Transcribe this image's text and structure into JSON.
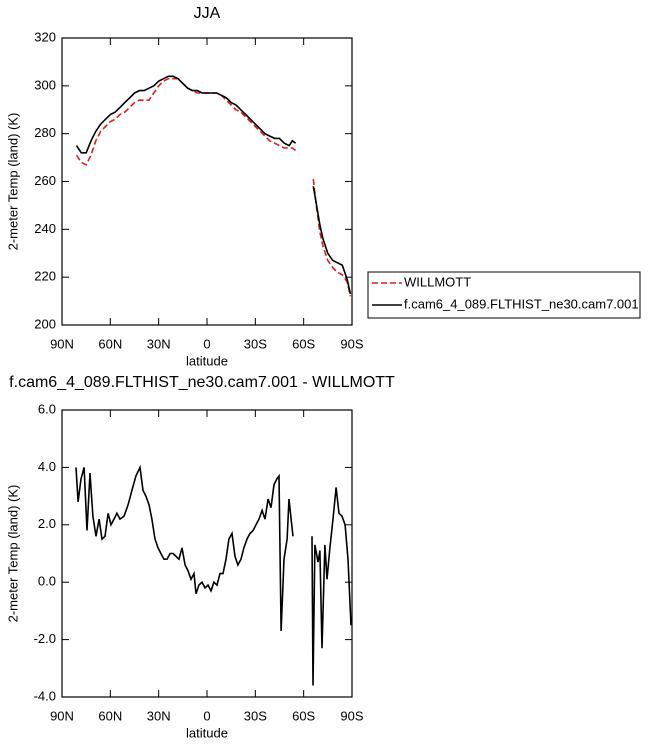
{
  "chart_data": [
    {
      "type": "line",
      "title": "JJA",
      "ylabel": "2-meter Temp (land) (K)",
      "xlabel": "latitude",
      "xlim": [
        90,
        -90
      ],
      "xticks": [
        {
          "value": 90,
          "label": "90N"
        },
        {
          "value": 60,
          "label": "60N"
        },
        {
          "value": 30,
          "label": "30N"
        },
        0,
        {
          "value": -30,
          "label": "30S"
        },
        {
          "value": -60,
          "label": "60S"
        },
        {
          "value": -90,
          "label": "90S"
        }
      ],
      "ylim": [
        200,
        320
      ],
      "yticks": [
        200,
        220,
        240,
        260,
        280,
        300,
        320
      ],
      "x": [
        81,
        78,
        75,
        72,
        69,
        66,
        63,
        60,
        57,
        54,
        51,
        48,
        45,
        42,
        39,
        36,
        33,
        30,
        27,
        24,
        21,
        18,
        15,
        12,
        9,
        6,
        3,
        0,
        -3,
        -6,
        -9,
        -12,
        -15,
        -18,
        -21,
        -24,
        -27,
        -30,
        -33,
        -36,
        -39,
        -42,
        -45,
        -48,
        -51,
        -53,
        -55,
        -60,
        -66,
        -68,
        -70,
        -72,
        -75,
        -78,
        -81,
        -84,
        -87,
        -89
      ],
      "series": [
        {
          "name": "WILLMOTT",
          "color": "#e41a1c",
          "linestyle": "dashed",
          "values": [
            271,
            268,
            267,
            271,
            277,
            281,
            283,
            285,
            286,
            288,
            289,
            291,
            293,
            294,
            294,
            294,
            297,
            300,
            302,
            303,
            303,
            303,
            301,
            299,
            298,
            297,
            297,
            297,
            297,
            297,
            296,
            294,
            292,
            290,
            289,
            287,
            285,
            283,
            281,
            279,
            277,
            276,
            275,
            274,
            274,
            274,
            273,
            null,
            261,
            249,
            239,
            233,
            227,
            224,
            222,
            221,
            218,
            212
          ]
        },
        {
          "name": "f.cam6_4_089.FLTHIST_ne30.cam7.001",
          "color": "#000000",
          "linestyle": "solid",
          "values": [
            275,
            272,
            272,
            277,
            281,
            284,
            286,
            288,
            289,
            291,
            293,
            295,
            297,
            298,
            298,
            299,
            300,
            302,
            303,
            304,
            304,
            303,
            301,
            299,
            298,
            298,
            297,
            297,
            297,
            297,
            296,
            295,
            293,
            292,
            290,
            288,
            286,
            284,
            282,
            280,
            279,
            278,
            278,
            276,
            275,
            277,
            276,
            null,
            258,
            250,
            242,
            236,
            230,
            227,
            226,
            225,
            219,
            213
          ]
        }
      ]
    },
    {
      "type": "line",
      "title": "f.cam6_4_089.FLTHIST_ne30.cam7.001 - WILLMOTT",
      "ylabel": "2-meter Temp (land) (K)",
      "xlabel": "latitude",
      "xlim": [
        90,
        -90
      ],
      "xticks": [
        {
          "value": 90,
          "label": "90N"
        },
        {
          "value": 60,
          "label": "60N"
        },
        {
          "value": 30,
          "label": "30N"
        },
        0,
        {
          "value": -30,
          "label": "30S"
        },
        {
          "value": -60,
          "label": "60S"
        },
        {
          "value": -90,
          "label": "90S"
        }
      ],
      "ylim": [
        -4,
        6
      ],
      "yticks": [
        {
          "value": -4,
          "label": "-4.0"
        },
        {
          "value": -2,
          "label": "-2.0"
        },
        {
          "value": 0,
          "label": "0.0"
        },
        {
          "value": 2,
          "label": "2.0"
        },
        {
          "value": 4,
          "label": "4.0"
        },
        {
          "value": 6,
          "label": "6.0"
        }
      ],
      "color": "#000000",
      "x": [
        81.3,
        80,
        78.2,
        76.3,
        74.5,
        72.6,
        70.8,
        68.9,
        67,
        65.2,
        63.3,
        61.4,
        59.6,
        57.7,
        55.9,
        54,
        51.5,
        49,
        46.6,
        44.1,
        41.6,
        39.7,
        37.9,
        36,
        34.2,
        32.3,
        30.4,
        28.6,
        26.7,
        24.8,
        22.9,
        21,
        19.2,
        17.4,
        15.5,
        13.6,
        11.8,
        9.9,
        8.1,
        6.8,
        5,
        3.1,
        1.2,
        -0.6,
        -2.5,
        -4.3,
        -6.2,
        -8.1,
        -9.9,
        -11.8,
        -13.6,
        -15.5,
        -17.4,
        -19.2,
        -21.1,
        -22.9,
        -24.8,
        -26.7,
        -28.6,
        -30.4,
        -32.3,
        -34.2,
        -36,
        -37.9,
        -39.7,
        -41.6,
        -43.4,
        -44.7,
        -46,
        -47.8,
        -49.7,
        -50.9,
        -52.2,
        -53.4,
        -60,
        -65.2,
        -65.8,
        -67,
        -68.9,
        -70.1,
        -71.4,
        -73.2,
        -74.5,
        -76.3,
        -78.2,
        -80.1,
        -81.9,
        -83.8,
        -85.7,
        -87.5,
        -89.4
      ],
      "values": [
        4.0,
        2.8,
        3.6,
        4.0,
        1.8,
        3.8,
        2.3,
        1.6,
        2.2,
        1.5,
        1.6,
        2.4,
        2.0,
        2.2,
        2.4,
        2.2,
        2.3,
        2.7,
        3.2,
        3.7,
        4.0,
        3.2,
        3.0,
        2.7,
        2.2,
        1.5,
        1.2,
        1.0,
        0.8,
        0.8,
        1.0,
        1.0,
        0.9,
        0.8,
        1.2,
        0.6,
        0.4,
        0.1,
        0.3,
        -0.4,
        -0.1,
        0.0,
        -0.2,
        -0.1,
        -0.3,
        0.0,
        -0.1,
        0.3,
        0.3,
        0.8,
        1.5,
        1.7,
        0.9,
        0.6,
        0.8,
        1.2,
        1.5,
        1.7,
        1.8,
        2.0,
        2.2,
        2.5,
        2.2,
        2.9,
        2.6,
        3.4,
        3.6,
        3.7,
        -1.7,
        0.8,
        1.5,
        2.9,
        2.2,
        1.6,
        null,
        1.6,
        -3.6,
        1.3,
        0.7,
        1.1,
        -2.3,
        1.3,
        0.1,
        1.2,
        2.2,
        3.3,
        2.4,
        2.3,
        2.0,
        0.8,
        -1.5
      ]
    }
  ]
}
